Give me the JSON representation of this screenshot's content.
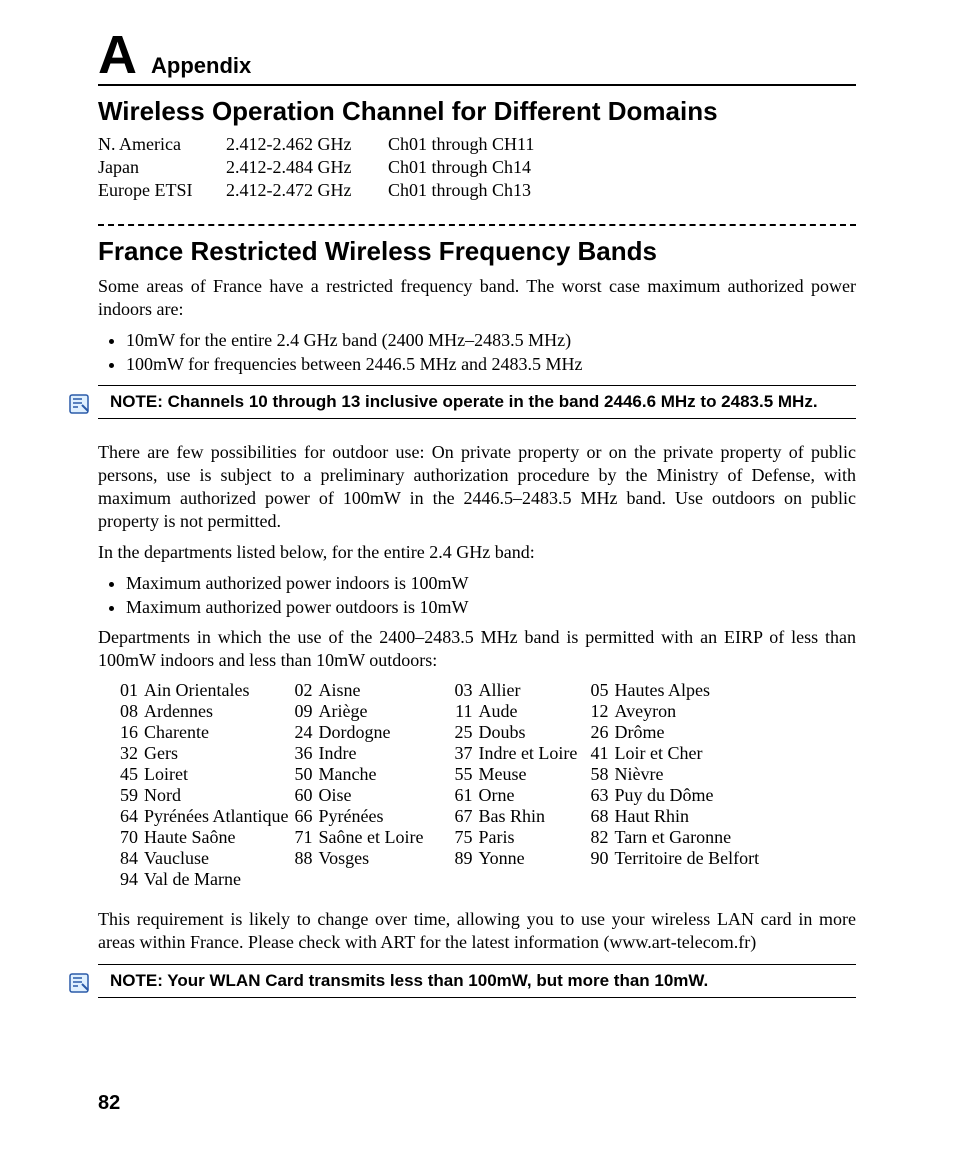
{
  "header": {
    "letter": "A",
    "label": "Appendix"
  },
  "section1": {
    "title": "Wireless Operation Channel for Different Domains",
    "rows": [
      {
        "region": "N. America",
        "freq": "2.412-2.462 GHz",
        "ch": "Ch01 through CH11"
      },
      {
        "region": "Japan",
        "freq": "2.412-2.484 GHz",
        "ch": "Ch01 through Ch14"
      },
      {
        "region": "Europe ETSI",
        "freq": "2.412-2.472 GHz",
        "ch": "Ch01 through Ch13"
      }
    ]
  },
  "colors": {
    "text": "#000000",
    "rule": "#000000",
    "note_icon_fill": "#dff0ff",
    "note_icon_stroke": "#2a5aa8"
  },
  "section2": {
    "title": "France Restricted Wireless Frequency Bands",
    "intro": "Some areas of France have a restricted frequency band. The worst case maximum authorized power indoors are:",
    "bullets1": [
      "10mW for the entire 2.4 GHz band (2400 MHz–2483.5 MHz)",
      "100mW for frequencies between 2446.5 MHz and 2483.5 MHz"
    ],
    "note1": "NOTE: Channels 10 through 13 inclusive operate in the band 2446.6 MHz to 2483.5 MHz.",
    "para1": "There are few possibilities for outdoor use: On private property or on the private property of public persons, use is subject to a preliminary authorization procedure by the Ministry of Defense, with maximum authorized power of 100mW in the 2446.5–2483.5 MHz band. Use outdoors on public property is not permitted.",
    "para2": "In the departments listed below, for the entire 2.4 GHz band:",
    "bullets2": [
      "Maximum authorized power indoors is 100mW",
      "Maximum authorized power outdoors is 10mW"
    ],
    "para3": "Departments in which the use of the 2400–2483.5 MHz band is permitted with an EIRP of less than 100mW indoors and less than 10mW outdoors:",
    "departments": [
      [
        "01",
        "Ain Orientales",
        "02",
        "Aisne",
        "03",
        "Allier",
        "05",
        "Hautes Alpes"
      ],
      [
        "08",
        "Ardennes",
        "09",
        "Ariège",
        "11",
        "Aude",
        "12",
        "Aveyron"
      ],
      [
        "16",
        "Charente",
        "24",
        "Dordogne",
        "25",
        "Doubs",
        "26",
        "Drôme"
      ],
      [
        "32",
        "Gers",
        "36",
        "Indre",
        "37",
        "Indre et Loire",
        "41",
        "Loir et Cher"
      ],
      [
        "45",
        "Loiret",
        "50",
        "Manche",
        "55",
        "Meuse",
        "58",
        "Nièvre"
      ],
      [
        "59",
        "Nord",
        "60",
        "Oise",
        "61",
        "Orne",
        "63",
        "Puy du Dôme"
      ],
      [
        "64",
        "Pyrénées Atlantique",
        "66",
        "Pyrénées",
        "67",
        "Bas Rhin",
        "68",
        "Haut Rhin"
      ],
      [
        "70",
        "Haute Saône",
        "71",
        "Saône et Loire",
        "75",
        "Paris",
        "82",
        "Tarn et Garonne"
      ],
      [
        "84",
        "Vaucluse",
        "88",
        "Vosges",
        "89",
        "Yonne",
        "90",
        "Territoire de Belfort"
      ],
      [
        "94",
        "Val de Marne",
        "",
        "",
        "",
        "",
        "",
        ""
      ]
    ],
    "para4": "This requirement is likely to change over time, allowing you to use your wireless LAN card in more areas within France. Please check with ART for the latest information (www.art-telecom.fr)",
    "note2": "NOTE: Your WLAN Card transmits less than 100mW, but more than 10mW."
  },
  "page_number": "82"
}
